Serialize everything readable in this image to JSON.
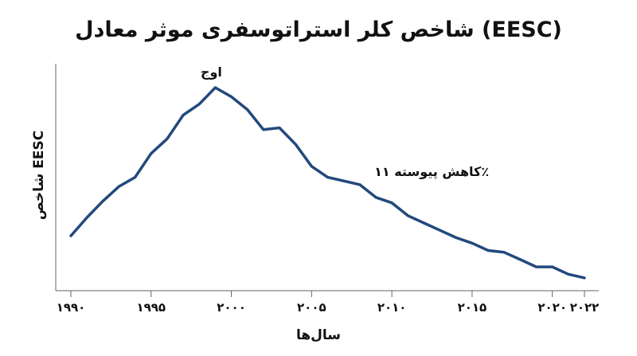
{
  "chart_data": {
    "type": "line",
    "title": "شاخص کلر استراتوسفری موثر معادل (EESC)",
    "xlabel": "سال‌ها",
    "ylabel": "شاخص EESC",
    "xlim": [
      1990,
      2022
    ],
    "ylim": [
      0,
      100
    ],
    "x_ticks": [
      1990,
      1995,
      2000,
      2005,
      2010,
      2015,
      2020,
      2022
    ],
    "x_tick_labels": [
      "۱۹۹۰",
      "۱۹۹۵",
      "۲۰۰۰",
      "۲۰۰۵",
      "۲۰۱۰",
      "۲۰۱۵",
      "۲۰۲۰",
      "۲۰۲۲"
    ],
    "grid": false,
    "series": [
      {
        "color": "#23497d",
        "x": [
          1990,
          1991,
          1992,
          1993,
          1994,
          1995,
          1996,
          1997,
          1998,
          1999,
          2000,
          2001,
          2002,
          2003,
          2004,
          2005,
          2006,
          2007,
          2008,
          2009,
          2010,
          2011,
          2012,
          2013,
          2014,
          2015,
          2016,
          2017,
          2018,
          2019,
          2020,
          2021,
          2022
        ],
        "y": [
          30,
          40,
          49,
          57,
          62,
          75,
          83,
          96,
          102,
          111,
          106,
          99,
          88,
          89,
          80,
          68,
          62,
          60,
          58,
          51,
          48,
          41,
          37,
          33,
          29,
          26,
          22,
          21,
          17,
          13,
          13,
          9,
          7
        ]
      }
    ],
    "annotations": [
      {
        "text": "اوج",
        "x": 1998.9,
        "y": 111
      },
      {
        "text": "کاهش پیوسته ۱۱٪",
        "x": 2010,
        "y": 60
      }
    ]
  }
}
